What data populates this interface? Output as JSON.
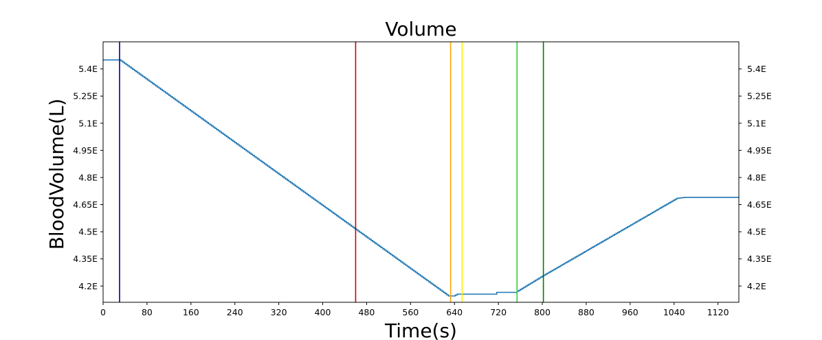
{
  "chart_data": {
    "type": "line",
    "title": "Volume",
    "xlabel": "Time(s)",
    "ylabel": "BloodVolume(L)",
    "xlim": [
      0,
      1158
    ],
    "ylim": [
      4.11,
      5.55
    ],
    "x_ticks": [
      0,
      80,
      160,
      240,
      320,
      400,
      480,
      560,
      640,
      720,
      800,
      880,
      960,
      1040,
      1120
    ],
    "x_tick_labels": [
      "0",
      "80",
      "160",
      "240",
      "320",
      "400",
      "480",
      "560",
      "640",
      "720",
      "800",
      "880",
      "960",
      "1040",
      "1120"
    ],
    "y_ticks": [
      4.2,
      4.35,
      4.5,
      4.65,
      4.8,
      4.95,
      5.1,
      5.25,
      5.4
    ],
    "y_tick_labels": [
      "4.2E",
      "4.35E",
      "4.5E",
      "4.65E",
      "4.8E",
      "4.95E",
      "5.1E",
      "5.25E",
      "5.4E"
    ],
    "right_axis_tick_labels": [
      "4.2E",
      "4.35E",
      "4.5E",
      "4.65E",
      "4.8E",
      "4.95E",
      "5.1E",
      "5.25E",
      "5.4E"
    ],
    "grid": false,
    "series": [
      {
        "color": "#1f77b4",
        "step": true,
        "x": [
          0,
          30,
          629,
          638,
          645,
          713,
          717,
          751,
          800,
          1045,
          1060,
          1158
        ],
        "y": [
          5.45,
          5.45,
          4.145,
          4.145,
          4.155,
          4.155,
          4.165,
          4.165,
          4.255,
          4.685,
          4.69,
          4.69
        ]
      }
    ],
    "vertical_lines": [
      {
        "x": 30,
        "color": "#00008b"
      },
      {
        "x": 460,
        "color": "#cc0000"
      },
      {
        "x": 633,
        "color": "#ffa500"
      },
      {
        "x": 654,
        "color": "#ffee00"
      },
      {
        "x": 754,
        "color": "#32cd32"
      },
      {
        "x": 802,
        "color": "#008000"
      }
    ]
  }
}
